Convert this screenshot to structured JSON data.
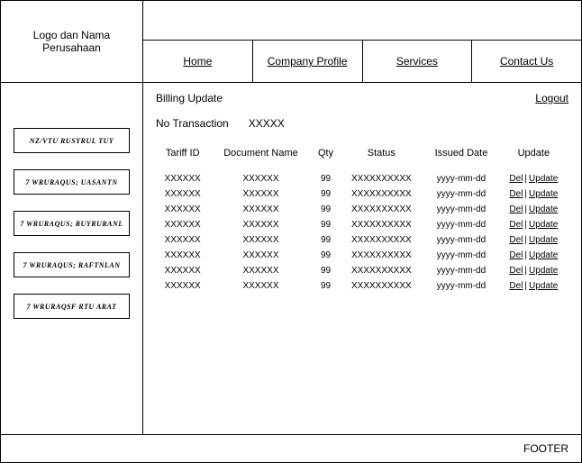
{
  "header": {
    "logo_text": "Logo dan Nama Perusahaan",
    "nav": [
      "Home",
      "Company Profile",
      "Services",
      "Contact Us"
    ]
  },
  "sidebar": {
    "buttons": [
      "NZ/VTU RUSYRUL TUY",
      "7 WRURAQUS; UASANTN",
      "7 WRURAQUS; RUYRURANL",
      "7 WRURAQUS; RAFTNLAN",
      "7 WRURAQSF RTU ARAT"
    ]
  },
  "page": {
    "title": "Billing Update",
    "logout": "Logout",
    "no_transaction_label": "No Transaction",
    "no_transaction_value": "XXXXX"
  },
  "table": {
    "columns": [
      "Tariff ID",
      "Document Name",
      "Qty",
      "Status",
      "Issued Date",
      "Update"
    ],
    "rows": [
      {
        "tariff": "XXXXXX",
        "doc": "XXXXXX",
        "qty": "99",
        "status": "XXXXXXXXXX",
        "date": "yyyy-mm-dd"
      },
      {
        "tariff": "XXXXXX",
        "doc": "XXXXXX",
        "qty": "99",
        "status": "XXXXXXXXXX",
        "date": "yyyy-mm-dd"
      },
      {
        "tariff": "XXXXXX",
        "doc": "XXXXXX",
        "qty": "99",
        "status": "XXXXXXXXXX",
        "date": "yyyy-mm-dd"
      },
      {
        "tariff": "XXXXXX",
        "doc": "XXXXXX",
        "qty": "99",
        "status": "XXXXXXXXXX",
        "date": "yyyy-mm-dd"
      },
      {
        "tariff": "XXXXXX",
        "doc": "XXXXXX",
        "qty": "99",
        "status": "XXXXXXXXXX",
        "date": "yyyy-mm-dd"
      },
      {
        "tariff": "XXXXXX",
        "doc": "XXXXXX",
        "qty": "99",
        "status": "XXXXXXXXXX",
        "date": "yyyy-mm-dd"
      },
      {
        "tariff": "XXXXXX",
        "doc": "XXXXXX",
        "qty": "99",
        "status": "XXXXXXXXXX",
        "date": "yyyy-mm-dd"
      },
      {
        "tariff": "XXXXXX",
        "doc": "XXXXXX",
        "qty": "99",
        "status": "XXXXXXXXXX",
        "date": "yyyy-mm-dd"
      }
    ],
    "del_label": "Del",
    "update_label": "Update",
    "sep": "|"
  },
  "footer": {
    "text": "FOOTER"
  }
}
